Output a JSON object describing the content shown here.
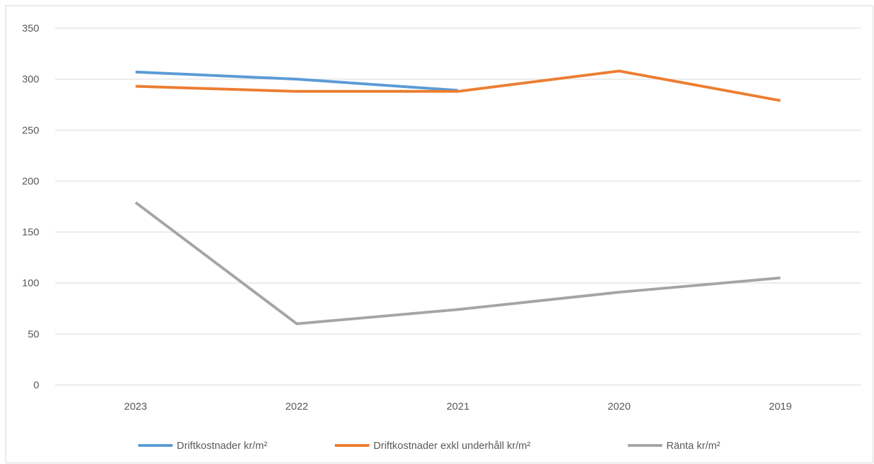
{
  "chart_data": {
    "type": "line",
    "categories": [
      "2023",
      "2022",
      "2021",
      "2020",
      "2019"
    ],
    "ylim": [
      0,
      350
    ],
    "yticks": [
      0,
      50,
      100,
      150,
      200,
      250,
      300,
      350
    ],
    "grid": true,
    "legend_position": "bottom",
    "series": [
      {
        "name": "Driftkostnader kr/m²",
        "color": "#5b9bd5",
        "values": [
          307,
          300,
          289,
          null,
          null
        ]
      },
      {
        "name": "Driftkostnader exkl underhåll kr/m²",
        "color": "#ed7d31",
        "values": [
          293,
          288,
          288,
          308,
          279
        ]
      },
      {
        "name": "Ränta kr/m²",
        "color": "#a5a5a5",
        "values": [
          179,
          60,
          74,
          91,
          105
        ]
      }
    ]
  }
}
